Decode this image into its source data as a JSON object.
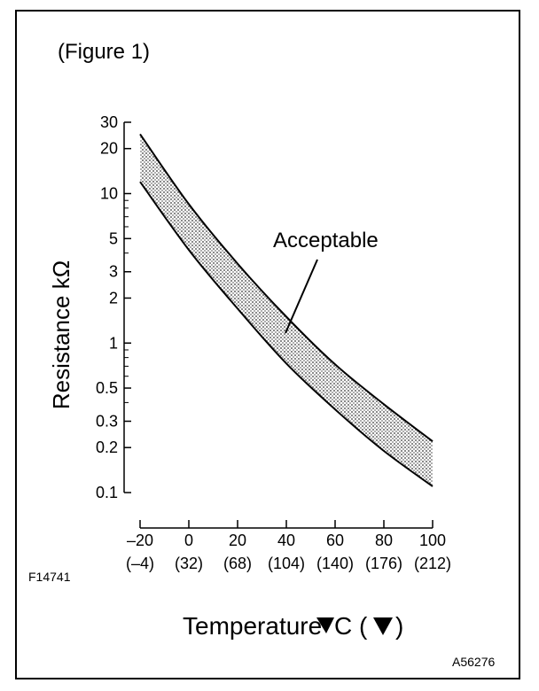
{
  "figure_label": "(Figure 1)",
  "code_left": "F14741",
  "code_right": "A56276",
  "colors": {
    "ink": "#000000",
    "band_fill": "#bdbdbd",
    "paper": "#ffffff"
  },
  "chart_data": {
    "type": "area",
    "title": "",
    "ylabel": "Resistance kΩ",
    "xlabel": "Temperature",
    "xlabel_units": "C (",
    "xlabel_close": ")",
    "yscale": "log",
    "xlim": [
      -20,
      100
    ],
    "ylim": [
      0.1,
      30
    ],
    "grid": false,
    "x_ticks": [
      {
        "value": -20,
        "c": "–20",
        "f": "(–4)"
      },
      {
        "value": 0,
        "c": "0",
        "f": "(32)"
      },
      {
        "value": 20,
        "c": "20",
        "f": "(68)"
      },
      {
        "value": 40,
        "c": "40",
        "f": "(104)"
      },
      {
        "value": 60,
        "c": "60",
        "f": "(140)"
      },
      {
        "value": 80,
        "c": "80",
        "f": "(176)"
      },
      {
        "value": 100,
        "c": "100",
        "f": "(212)"
      }
    ],
    "y_ticks": [
      {
        "value": 30,
        "label": "30"
      },
      {
        "value": 20,
        "label": "20"
      },
      {
        "value": 10,
        "label": "10"
      },
      {
        "value": 5,
        "label": "5"
      },
      {
        "value": 3,
        "label": "3"
      },
      {
        "value": 2,
        "label": "2"
      },
      {
        "value": 1,
        "label": "1"
      },
      {
        "value": 0.5,
        "label": "0.5"
      },
      {
        "value": 0.3,
        "label": "0.3"
      },
      {
        "value": 0.2,
        "label": "0.2"
      },
      {
        "value": 0.1,
        "label": "0.1"
      }
    ],
    "series": [
      {
        "name": "upper",
        "x": [
          -20,
          0,
          20,
          40,
          60,
          80,
          100
        ],
        "y": [
          25,
          8.5,
          3.4,
          1.5,
          0.72,
          0.39,
          0.22
        ]
      },
      {
        "name": "lower",
        "x": [
          -20,
          0,
          20,
          40,
          60,
          80,
          100
        ],
        "y": [
          12,
          4.2,
          1.7,
          0.73,
          0.36,
          0.19,
          0.11
        ]
      }
    ],
    "annotation": "Acceptable"
  }
}
